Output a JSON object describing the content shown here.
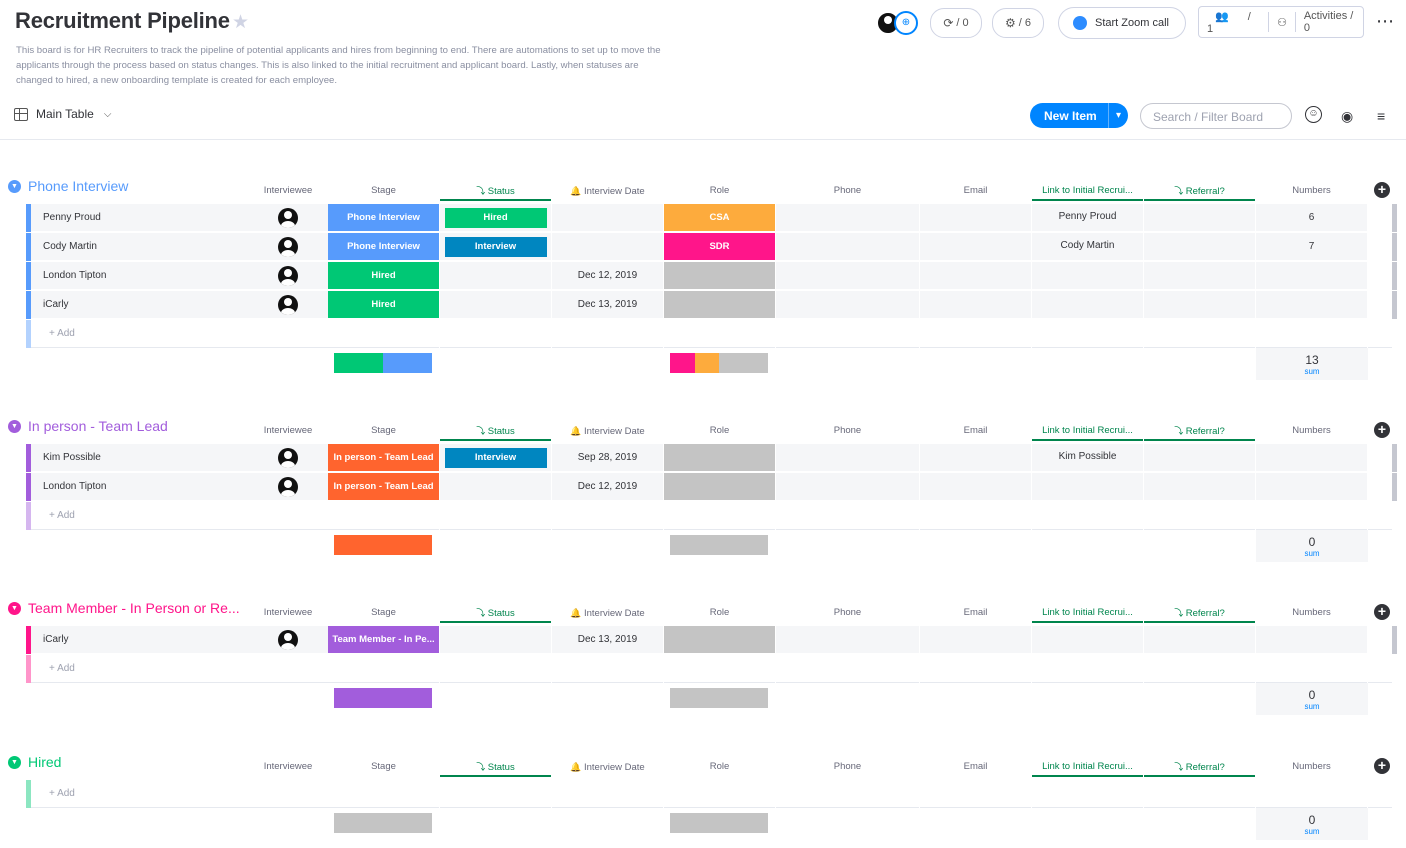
{
  "board": {
    "title": "Recruitment Pipeline",
    "description": "This board is for HR Recruiters to track the pipeline of potential applicants and hires from beginning to end. There are automations to set up to move the applicants through the process based on status changes. This is also linked to the initial recruitment and applicant board. Lastly, when statuses are changed to hired, a new onboarding template is created for each employee."
  },
  "toolbar": {
    "integrations_count": "/ 0",
    "automations_count": "/ 6",
    "zoom_label": "Start Zoom call",
    "members_count": "/ 1",
    "activities_label": "Activities / 0"
  },
  "view": {
    "main_table_label": "Main Table",
    "new_item_label": "New Item",
    "search_placeholder": "Search / Filter Board"
  },
  "columns": {
    "interviewee": "Interviewee",
    "stage": "Stage",
    "status": "Status",
    "interview_date": "Interview Date",
    "role": "Role",
    "phone": "Phone",
    "email": "Email",
    "link": "Link to Initial Recrui...",
    "referral": "Referral?",
    "numbers": "Numbers"
  },
  "colors": {
    "phone_interview": "#579bfc",
    "in_person": "#a25ddc",
    "team_member": "#e2445c",
    "hired": "#00c875",
    "stage_orange": "#ff642e",
    "interview_blue": "#0086c0",
    "csa_orange": "#fdab3d",
    "sdr_pink": "#ff158a",
    "grey": "#c4c4c4"
  },
  "add_label": "+ Add",
  "sum_label": "sum",
  "groups": [
    {
      "name": "Phone Interview",
      "color": "#579bfc",
      "rows": [
        {
          "name": "Penny Proud",
          "stage": "Phone Interview",
          "stage_color": "#579bfc",
          "status": "Hired",
          "status_color": "#00c875",
          "date": "",
          "role": "CSA",
          "role_color": "#fdab3d",
          "link": "Penny Proud",
          "numbers": "6"
        },
        {
          "name": "Cody Martin",
          "stage": "Phone Interview",
          "stage_color": "#579bfc",
          "status": "Interview",
          "status_color": "#0086c0",
          "date": "",
          "role": "SDR",
          "role_color": "#ff158a",
          "link": "Cody Martin",
          "numbers": "7"
        },
        {
          "name": "London Tipton",
          "stage": "Hired",
          "stage_color": "#00c875",
          "status": "",
          "status_color": "",
          "date": "Dec 12, 2019",
          "role": "",
          "role_color": "#c4c4c4",
          "link": "",
          "numbers": ""
        },
        {
          "name": "iCarly",
          "stage": "Hired",
          "stage_color": "#00c875",
          "status": "",
          "status_color": "",
          "date": "Dec 13, 2019",
          "role": "",
          "role_color": "#c4c4c4",
          "link": "",
          "numbers": ""
        }
      ],
      "sum": "13",
      "stage_summary": [
        {
          "color": "#00c875",
          "share": 0.5
        },
        {
          "color": "#579bfc",
          "share": 0.5
        }
      ],
      "role_summary": [
        {
          "color": "#ff158a",
          "share": 0.25
        },
        {
          "color": "#fdab3d",
          "share": 0.25
        },
        {
          "color": "#c4c4c4",
          "share": 0.5
        }
      ]
    },
    {
      "name": "In person - Team Lead",
      "color": "#a25ddc",
      "rows": [
        {
          "name": "Kim Possible",
          "stage": "In person - Team Lead",
          "stage_color": "#ff642e",
          "status": "Interview",
          "status_color": "#0086c0",
          "date": "Sep 28, 2019",
          "role": "",
          "role_color": "#c4c4c4",
          "link": "Kim Possible",
          "numbers": ""
        },
        {
          "name": "London Tipton",
          "stage": "In person - Team Lead",
          "stage_color": "#ff642e",
          "status": "",
          "status_color": "",
          "date": "Dec 12, 2019",
          "role": "",
          "role_color": "#c4c4c4",
          "link": "",
          "numbers": ""
        }
      ],
      "sum": "0",
      "stage_summary": [
        {
          "color": "#ff642e",
          "share": 1
        }
      ],
      "role_summary": [
        {
          "color": "#c4c4c4",
          "share": 1
        }
      ]
    },
    {
      "name": "Team Member - In Person or Re...",
      "color": "#ff158a",
      "rows": [
        {
          "name": "iCarly",
          "stage": "Team Member - In Pe...",
          "stage_color": "#a25ddc",
          "status": "",
          "status_color": "",
          "date": "Dec 13, 2019",
          "role": "",
          "role_color": "#c4c4c4",
          "link": "",
          "numbers": ""
        }
      ],
      "sum": "0",
      "stage_summary": [
        {
          "color": "#a25ddc",
          "share": 1
        }
      ],
      "role_summary": [
        {
          "color": "#c4c4c4",
          "share": 1
        }
      ]
    },
    {
      "name": "Hired",
      "color": "#00c875",
      "rows": [],
      "sum": "0",
      "stage_summary": [
        {
          "color": "#c4c4c4",
          "share": 1
        }
      ],
      "role_summary": [
        {
          "color": "#c4c4c4",
          "share": 1
        }
      ]
    }
  ]
}
